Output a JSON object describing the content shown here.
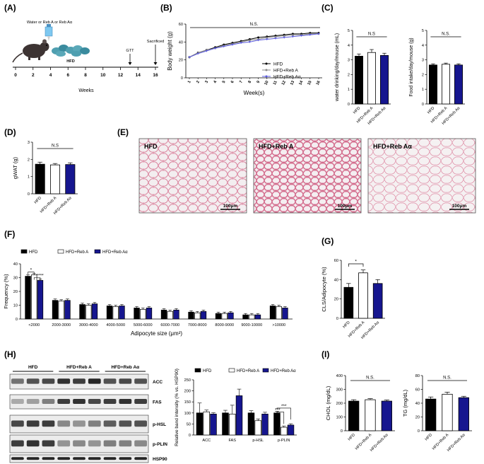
{
  "panels": {
    "a": "(A)",
    "b": "(B)",
    "c": "(C)",
    "d": "(D)",
    "e": "(E)",
    "f": "(F)",
    "g": "(G)",
    "h": "(H)",
    "i": "(I)"
  },
  "colors": {
    "hfd": "#000000",
    "reb_a": "#ffffff",
    "reb_aa": "#16168f",
    "line_a": "#888888",
    "line_aa": "#5b5bdd",
    "histo": "#d97a97"
  },
  "groups": [
    "HFD",
    "HFD+Reb A",
    "HFD+Reb Aα"
  ],
  "timeline": {
    "water_label": "Water or Reb A or Reb Aα",
    "food_label": "HFD",
    "gtt_label": "GTT",
    "sac_label": "Sacrificed",
    "ticks": [
      "0",
      "2",
      "4",
      "6",
      "8",
      "10",
      "12",
      "14",
      "16"
    ],
    "xlabel": "Weeks"
  },
  "histology": {
    "titles": [
      "HFD",
      "HFD+Reb A",
      "HFD+Reb Aα"
    ],
    "scale": "100μm"
  },
  "blot": {
    "groups": [
      "HFD",
      "HFD+Reb A",
      "HFD+Reb Aα"
    ],
    "bands": [
      "ACC",
      "FAS",
      "p-HSL",
      "p-PLIN",
      "HSP90"
    ]
  },
  "chart_data": [
    {
      "id": "b",
      "type": "line",
      "x": [
        1,
        2,
        3,
        4,
        5,
        6,
        7,
        8,
        9,
        10,
        11,
        12,
        13,
        14,
        15,
        16
      ],
      "xticks": [
        "1",
        "2",
        "3",
        "4",
        "5",
        "6",
        "7",
        "8",
        "9",
        "10",
        "11",
        "12",
        "13",
        "14",
        "15",
        "16"
      ],
      "xlabel": "Week(s)",
      "ylabel": "Body weight (g)",
      "ylim": [
        0,
        60
      ],
      "yticks": [
        "0",
        "20",
        "40",
        "60"
      ],
      "annotation": "N.S.",
      "legend": [
        "HFD",
        "HFD+Reb A",
        "HFD+Reb Aα"
      ],
      "series": [
        {
          "name": "HFD",
          "values": [
            23,
            28,
            31,
            34,
            37,
            39,
            41,
            43,
            45,
            46,
            47,
            48,
            49,
            49,
            50,
            50
          ]
        },
        {
          "name": "HFD+Reb A",
          "values": [
            23,
            28,
            31,
            33,
            36,
            38,
            40,
            42,
            43,
            45,
            46,
            47,
            48,
            48,
            49,
            49
          ]
        },
        {
          "name": "HFD+Reb Aα",
          "values": [
            23,
            27,
            30,
            33,
            35,
            37,
            39,
            40,
            42,
            43,
            44,
            45,
            46,
            47,
            48,
            49
          ]
        }
      ]
    },
    {
      "id": "c1",
      "type": "bar",
      "categories": [
        "HFD",
        "HFD+Reb A",
        "HFD+Reb Aα"
      ],
      "values": [
        3.25,
        3.5,
        3.3
      ],
      "errors": [
        0.15,
        0.2,
        0.15
      ],
      "ylabel": "water drinking/day/mouse (mL)",
      "ylim": [
        0,
        5
      ],
      "yticks": [
        "0",
        "1",
        "2",
        "3",
        "4",
        "5"
      ],
      "annotation": "N.S"
    },
    {
      "id": "c2",
      "type": "bar",
      "categories": [
        "HFD",
        "HFD+Reb A",
        "HFD+Reb Aα"
      ],
      "values": [
        2.65,
        2.7,
        2.65
      ],
      "errors": [
        0.08,
        0.08,
        0.08
      ],
      "ylabel": "Food intake/day/mouse (g)",
      "ylim": [
        0,
        5
      ],
      "yticks": [
        "0",
        "1",
        "2",
        "3",
        "4",
        "5"
      ],
      "annotation": "N.S."
    },
    {
      "id": "d",
      "type": "bar",
      "categories": [
        "HFD",
        "HFD+Reb A",
        "HFD+Reb Aα"
      ],
      "values": [
        1.72,
        1.68,
        1.7
      ],
      "errors": [
        0.12,
        0.08,
        0.1
      ],
      "ylabel": "gWAT (g)",
      "ylim": [
        0,
        3
      ],
      "yticks": [
        "0",
        "1",
        "2",
        "3"
      ],
      "annotation": "N.S"
    },
    {
      "id": "f",
      "type": "bar",
      "categories": [
        "<2000",
        "2000-3000",
        "3000-4000",
        "4000-5000",
        "5000-6000",
        "6000-7000",
        "7000-8000",
        "8000-9000",
        "9000-10000",
        ">10000"
      ],
      "legend": [
        "HFD",
        "HFD+Reb A",
        "HFD+Reb Aα"
      ],
      "series": [
        {
          "name": "HFD",
          "values": [
            31,
            13.5,
            10.5,
            9.5,
            8,
            6.5,
            5,
            4,
            3,
            9.5
          ]
        },
        {
          "name": "HFD+Reb A",
          "values": [
            32,
            13,
            10,
            9,
            7,
            5.5,
            4.5,
            4,
            3,
            9
          ]
        },
        {
          "name": "HFD+Reb Aα",
          "values": [
            28,
            13.5,
            11,
            9.5,
            8,
            6.5,
            5.5,
            4.5,
            3,
            8
          ]
        }
      ],
      "ylabel": "Frequency (%)",
      "xlabel": "Adipocyte size (μm²)",
      "ylim": [
        0,
        40
      ],
      "yticks": [
        "0",
        "10",
        "20",
        "30",
        "40"
      ],
      "annotations": [
        "*",
        "****"
      ]
    },
    {
      "id": "g",
      "type": "bar",
      "categories": [
        "HFD",
        "HFD+Reb A",
        "HFD+Reb Aα"
      ],
      "values": [
        32,
        47,
        36
      ],
      "errors": [
        4,
        3,
        4
      ],
      "ylabel": "CLS/Adipocyte (%)",
      "ylim": [
        0,
        60
      ],
      "yticks": [
        "0",
        "20",
        "40",
        "60"
      ],
      "annotation": "*"
    },
    {
      "id": "h",
      "type": "bar",
      "categories": [
        "ACC",
        "FAS",
        "p-HSL",
        "p-PLIN"
      ],
      "legend": [
        "HFD",
        "HFD+Reb A",
        "HFD+Reb Aα"
      ],
      "series": [
        {
          "name": "HFD",
          "values": [
            100,
            100,
            100,
            100
          ],
          "errors": [
            45,
            12,
            10,
            8
          ]
        },
        {
          "name": "HFD+Reb A",
          "values": [
            105,
            95,
            65,
            35
          ],
          "errors": [
            8,
            40,
            8,
            6
          ]
        },
        {
          "name": "HFD+Reb Aα",
          "values": [
            95,
            178,
            95,
            45
          ],
          "errors": [
            6,
            30,
            8,
            6
          ]
        }
      ],
      "ylabel": "Relative band intensity (% vs. HSP90)",
      "ylim": [
        0,
        250
      ],
      "yticks": [
        "0",
        "50",
        "100",
        "150",
        "200",
        "250"
      ],
      "annotations": [
        "***",
        "***"
      ]
    },
    {
      "id": "i1",
      "type": "bar",
      "categories": [
        "HFD",
        "HFD+Reb A",
        "HFD+Reb Aα"
      ],
      "values": [
        215,
        225,
        215
      ],
      "errors": [
        10,
        8,
        8
      ],
      "ylabel": "CHOL (mg/dL)",
      "ylim": [
        0,
        400
      ],
      "yticks": [
        "0",
        "100",
        "200",
        "300",
        "400"
      ],
      "annotation": "N.S."
    },
    {
      "id": "i2",
      "type": "bar",
      "categories": [
        "HFD",
        "HFD+Reb A",
        "HFD+Reb Aα"
      ],
      "values": [
        46,
        53,
        48
      ],
      "errors": [
        3,
        3,
        2
      ],
      "ylabel": "TG (mg/dL)",
      "ylim": [
        0,
        80
      ],
      "yticks": [
        "0",
        "20",
        "40",
        "60",
        "80"
      ],
      "annotation": "N.S."
    }
  ]
}
